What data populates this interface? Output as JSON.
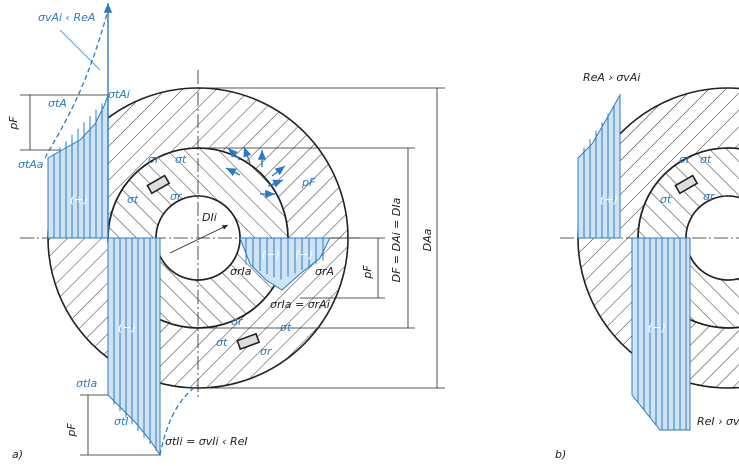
{
  "panels": [
    {
      "caption": "a)",
      "labels": [
        "σvAi ‹ ReA",
        "σtAi",
        "σtA",
        "pF",
        "σtAa",
        "(+)",
        "σr",
        "σt",
        "σt",
        "σr",
        "pF",
        "DIi",
        "DF = DAi = DIa",
        "DAa",
        "(−)",
        "(−)",
        "σrIa",
        "σrA",
        "pF",
        "σrIa = σrAi",
        "σr",
        "σt",
        "σt",
        "σr",
        "(−)",
        "σtIa",
        "σtI",
        "pF",
        "σtIi = σvIi ‹ ReI"
      ]
    },
    {
      "caption": "b)",
      "labels": [
        "ReA › σvAi",
        "(+)",
        "σr",
        "σt",
        "σt",
        "σr",
        "(−)",
        "ReI › σv"
      ]
    }
  ]
}
